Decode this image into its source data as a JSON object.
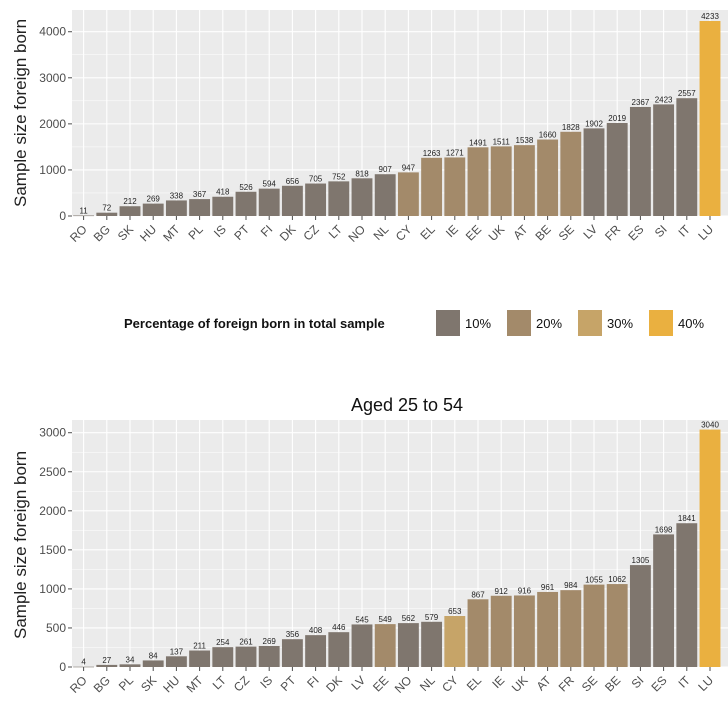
{
  "chart_data": [
    {
      "type": "bar",
      "title": "",
      "xlabel": "",
      "ylabel": "Sample size foreign born",
      "ylim": [
        0,
        4450
      ],
      "yticks": [
        0,
        1000,
        2000,
        3000,
        4000
      ],
      "grid": true,
      "categories": [
        "RO",
        "BG",
        "SK",
        "HU",
        "MT",
        "PL",
        "IS",
        "PT",
        "FI",
        "DK",
        "CZ",
        "LT",
        "NO",
        "NL",
        "CY",
        "EL",
        "IE",
        "EE",
        "UK",
        "AT",
        "BE",
        "SE",
        "LV",
        "FR",
        "ES",
        "SI",
        "IT",
        "LU"
      ],
      "values": [
        11,
        72,
        212,
        269,
        338,
        367,
        418,
        526,
        594,
        656,
        705,
        752,
        818,
        907,
        947,
        1263,
        1271,
        1491,
        1511,
        1538,
        1660,
        1828,
        1902,
        2019,
        2367,
        2423,
        2557,
        4233
      ],
      "share_group": [
        0,
        0,
        0,
        0,
        0,
        0,
        0,
        0,
        0,
        0,
        0,
        0,
        0,
        0,
        1,
        1,
        1,
        1,
        1,
        1,
        1,
        1,
        0,
        0,
        0,
        0,
        0,
        3
      ],
      "value_labels": [
        "11",
        "72",
        "212",
        "269",
        "338",
        "367",
        "418",
        "526",
        "594",
        "656",
        "705",
        "752",
        "818",
        "907",
        "947",
        "1263",
        "1271",
        "1491",
        "1511",
        "1538",
        "1660",
        "1828",
        "1902",
        "2019",
        "2367",
        "2423",
        "2557",
        "4233"
      ]
    },
    {
      "type": "bar",
      "title": "Aged 25 to 54",
      "xlabel": "",
      "ylabel": "Sample size foreign born",
      "ylim": [
        0,
        3150
      ],
      "yticks": [
        0,
        500,
        1000,
        1500,
        2000,
        2500,
        3000
      ],
      "grid": true,
      "categories": [
        "RO",
        "BG",
        "PL",
        "SK",
        "HU",
        "MT",
        "LT",
        "CZ",
        "IS",
        "PT",
        "FI",
        "DK",
        "LV",
        "EE",
        "NO",
        "NL",
        "CY",
        "EL",
        "IE",
        "UK",
        "AT",
        "FR",
        "SE",
        "BE",
        "SI",
        "ES",
        "IT",
        "LU"
      ],
      "values": [
        4,
        27,
        34,
        84,
        137,
        211,
        254,
        261,
        269,
        356,
        408,
        446,
        545,
        549,
        562,
        579,
        653,
        867,
        912,
        916,
        961,
        984,
        1055,
        1062,
        1305,
        1698,
        1841,
        3040
      ],
      "share_group": [
        0,
        0,
        0,
        0,
        0,
        0,
        0,
        0,
        0,
        0,
        0,
        0,
        0,
        1,
        0,
        0,
        2,
        1,
        1,
        1,
        1,
        1,
        1,
        1,
        0,
        0,
        0,
        3
      ],
      "value_labels": [
        "4",
        "27",
        "34",
        "84",
        "137",
        "211",
        "254",
        "261",
        "269",
        "356",
        "408",
        "446",
        "545",
        "549",
        "562",
        "579",
        "653",
        "867",
        "912",
        "916",
        "961",
        "984",
        "1055",
        "1062",
        "1305",
        "1698",
        "1841",
        "3040"
      ]
    }
  ],
  "legend": {
    "title": "Percentage of foreign born in total sample",
    "placement": "between-panels",
    "items": [
      {
        "label": "10%",
        "color": "#7f766e"
      },
      {
        "label": "20%",
        "color": "#a38a6a"
      },
      {
        "label": "30%",
        "color": "#c6a468"
      },
      {
        "label": "40%",
        "color": "#eab040"
      }
    ]
  },
  "colors": {
    "panel_background": "#ebebeb",
    "gridline": "#ffffff",
    "bar_10": "#7f766e",
    "bar_20": "#a38a6a",
    "bar_30": "#c6a468",
    "bar_40": "#eab040"
  }
}
